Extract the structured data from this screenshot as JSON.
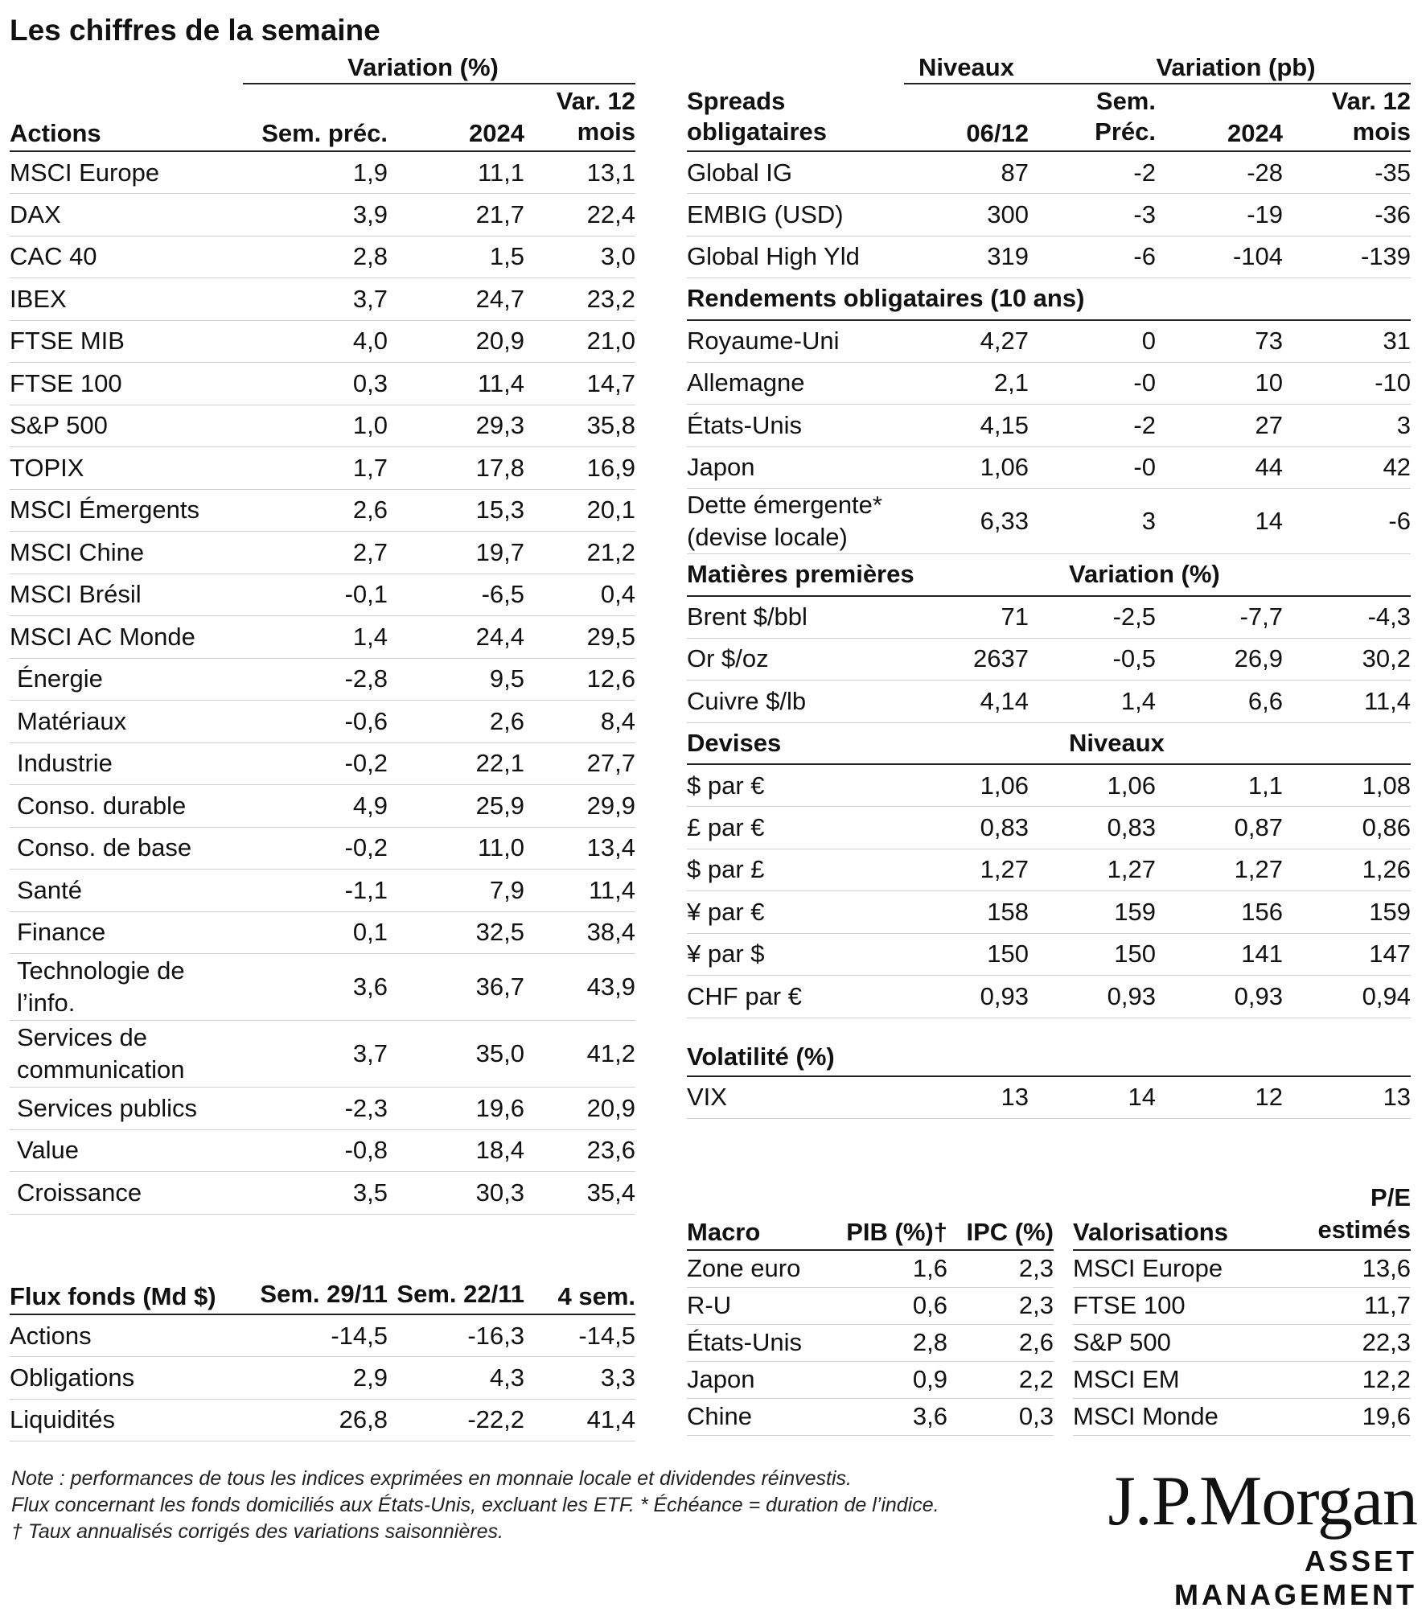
{
  "title": "Les chiffres de la semaine",
  "equities": {
    "group_header": "Variation (%)",
    "headers": [
      "Actions",
      "Sem. préc.",
      "2024",
      "Var. 12 mois"
    ],
    "rows": [
      {
        "label": "MSCI Europe",
        "v": [
          "1,9",
          "11,1",
          "13,1"
        ]
      },
      {
        "label": "DAX",
        "v": [
          "3,9",
          "21,7",
          "22,4"
        ]
      },
      {
        "label": "CAC 40",
        "v": [
          "2,8",
          "1,5",
          "3,0"
        ]
      },
      {
        "label": "IBEX",
        "v": [
          "3,7",
          "24,7",
          "23,2"
        ]
      },
      {
        "label": "FTSE MIB",
        "v": [
          "4,0",
          "20,9",
          "21,0"
        ]
      },
      {
        "label": "FTSE 100",
        "v": [
          "0,3",
          "11,4",
          "14,7"
        ]
      },
      {
        "label": "S&P 500",
        "v": [
          "1,0",
          "29,3",
          "35,8"
        ]
      },
      {
        "label": "TOPIX",
        "v": [
          "1,7",
          "17,8",
          "16,9"
        ]
      },
      {
        "label": "MSCI Émergents",
        "v": [
          "2,6",
          "15,3",
          "20,1"
        ]
      },
      {
        "label": "MSCI Chine",
        "v": [
          "2,7",
          "19,7",
          "21,2"
        ]
      },
      {
        "label": "MSCI Brésil",
        "v": [
          "-0,1",
          "-6,5",
          "0,4"
        ]
      },
      {
        "label": "MSCI AC Monde",
        "v": [
          "1,4",
          "24,4",
          "29,5"
        ]
      },
      {
        "label": "Énergie",
        "v": [
          "-2,8",
          "9,5",
          "12,6"
        ],
        "indent": true
      },
      {
        "label": "Matériaux",
        "v": [
          "-0,6",
          "2,6",
          "8,4"
        ],
        "indent": true
      },
      {
        "label": "Industrie",
        "v": [
          "-0,2",
          "22,1",
          "27,7"
        ],
        "indent": true
      },
      {
        "label": "Conso. durable",
        "v": [
          "4,9",
          "25,9",
          "29,9"
        ],
        "indent": true
      },
      {
        "label": "Conso. de base",
        "v": [
          "-0,2",
          "11,0",
          "13,4"
        ],
        "indent": true
      },
      {
        "label": "Santé",
        "v": [
          "-1,1",
          "7,9",
          "11,4"
        ],
        "indent": true
      },
      {
        "label": "Finance",
        "v": [
          "0,1",
          "32,5",
          "38,4"
        ],
        "indent": true
      },
      {
        "label": "Technologie de l’info.",
        "v": [
          "3,6",
          "36,7",
          "43,9"
        ],
        "indent": true,
        "tall": true
      },
      {
        "label": "Services de communication",
        "v": [
          "3,7",
          "35,0",
          "41,2"
        ],
        "indent": true,
        "tall": true
      },
      {
        "label": "Services publics",
        "v": [
          "-2,3",
          "19,6",
          "20,9"
        ],
        "indent": true
      },
      {
        "label": "Value",
        "v": [
          "-0,8",
          "18,4",
          "23,6"
        ],
        "indent": true
      },
      {
        "label": "Croissance",
        "v": [
          "3,5",
          "30,3",
          "35,4"
        ],
        "indent": true
      }
    ]
  },
  "flows": {
    "headers": [
      "Flux fonds (Md $)",
      "Sem. 29/11",
      "Sem. 22/11",
      "4 sem."
    ],
    "rows": [
      {
        "label": "Actions",
        "v": [
          "-14,5",
          "-16,3",
          "-14,5"
        ]
      },
      {
        "label": "Obligations",
        "v": [
          "2,9",
          "4,3",
          "3,3"
        ]
      },
      {
        "label": "Liquidités",
        "v": [
          "26,8",
          "-22,2",
          "41,4"
        ]
      }
    ]
  },
  "bonds": {
    "group_levels": "Niveaux",
    "group_change": "Variation (pb)",
    "headers": [
      "Spreads obligataires",
      "06/12",
      "Sem. Préc.",
      "2024",
      "Var. 12 mois"
    ],
    "sections": [
      {
        "title": "",
        "rows": [
          {
            "label": "Global IG",
            "v": [
              "87",
              "-2",
              "-28",
              "-35"
            ]
          },
          {
            "label": "EMBIG (USD)",
            "v": [
              "300",
              "-3",
              "-19",
              "-36"
            ]
          },
          {
            "label": "Global High Yld",
            "v": [
              "319",
              "-6",
              "-104",
              "-139"
            ]
          }
        ]
      },
      {
        "title": "Rendements obligataires (10 ans)",
        "rows": [
          {
            "label": "Royaume-Uni",
            "v": [
              "4,27",
              "0",
              "73",
              "31"
            ]
          },
          {
            "label": "Allemagne",
            "v": [
              "2,1",
              "-0",
              "10",
              "-10"
            ]
          },
          {
            "label": "États-Unis",
            "v": [
              "4,15",
              "-2",
              "27",
              "3"
            ]
          },
          {
            "label": "Japon",
            "v": [
              "1,06",
              "-0",
              "44",
              "42"
            ]
          },
          {
            "label": "Dette émergente* (devise locale)",
            "v": [
              "6,33",
              "3",
              "14",
              "-6"
            ],
            "tall": true
          }
        ]
      },
      {
        "title": "Matières premières",
        "subtitle": "Variation (%)",
        "rows": [
          {
            "label": "Brent $/bbl",
            "v": [
              "71",
              "-2,5",
              "-7,7",
              "-4,3"
            ]
          },
          {
            "label": "Or $/oz",
            "v": [
              "2637",
              "-0,5",
              "26,9",
              "30,2"
            ]
          },
          {
            "label": "Cuivre $/lb",
            "v": [
              "4,14",
              "1,4",
              "6,6",
              "11,4"
            ]
          }
        ]
      },
      {
        "title": "Devises",
        "subtitle": "Niveaux",
        "rows": [
          {
            "label": "$ par €",
            "v": [
              "1,06",
              "1,06",
              "1,1",
              "1,08"
            ]
          },
          {
            "label": "£ par €",
            "v": [
              "0,83",
              "0,83",
              "0,87",
              "0,86"
            ]
          },
          {
            "label": "$ par £",
            "v": [
              "1,27",
              "1,27",
              "1,27",
              "1,26"
            ]
          },
          {
            "label": "¥ par €",
            "v": [
              "158",
              "159",
              "156",
              "159"
            ]
          },
          {
            "label": "¥ par $",
            "v": [
              "150",
              "150",
              "141",
              "147"
            ]
          },
          {
            "label": "CHF par €",
            "v": [
              "0,93",
              "0,93",
              "0,93",
              "0,94"
            ]
          }
        ]
      }
    ]
  },
  "volatility": {
    "title": "Volatilité (%)",
    "rows": [
      {
        "label": "VIX",
        "v": [
          "13",
          "14",
          "12",
          "13"
        ]
      }
    ]
  },
  "macro": {
    "headers": [
      "Macro",
      "PIB (%)†",
      "IPC (%)"
    ],
    "rows": [
      {
        "label": "Zone euro",
        "v": [
          "1,6",
          "2,3"
        ]
      },
      {
        "label": "R-U",
        "v": [
          "0,6",
          "2,3"
        ]
      },
      {
        "label": "États-Unis",
        "v": [
          "2,8",
          "2,6"
        ]
      },
      {
        "label": "Japon",
        "v": [
          "0,9",
          "2,2"
        ]
      },
      {
        "label": "Chine",
        "v": [
          "3,6",
          "0,3"
        ]
      }
    ]
  },
  "valuations": {
    "headers": [
      "Valorisations",
      "P/E estimés"
    ],
    "rows": [
      {
        "label": "MSCI Europe",
        "v": [
          "13,6"
        ]
      },
      {
        "label": "FTSE 100",
        "v": [
          "11,7"
        ]
      },
      {
        "label": "S&P 500",
        "v": [
          "22,3"
        ]
      },
      {
        "label": "MSCI EM",
        "v": [
          "12,2"
        ]
      },
      {
        "label": "MSCI Monde",
        "v": [
          "19,6"
        ]
      }
    ]
  },
  "notes": {
    "line1": "Note : performances de tous les indices exprimées en monnaie locale et dividendes réinvestis.",
    "line2": "Flux concernant les fonds domiciliés aux États-Unis, excluant les ETF. * Échéance = duration de l’indice.",
    "line3": "† Taux annualisés corrigés des variations saisonnières."
  },
  "logo": {
    "main": "J.P.Morgan",
    "sub": "ASSET MANAGEMENT"
  }
}
